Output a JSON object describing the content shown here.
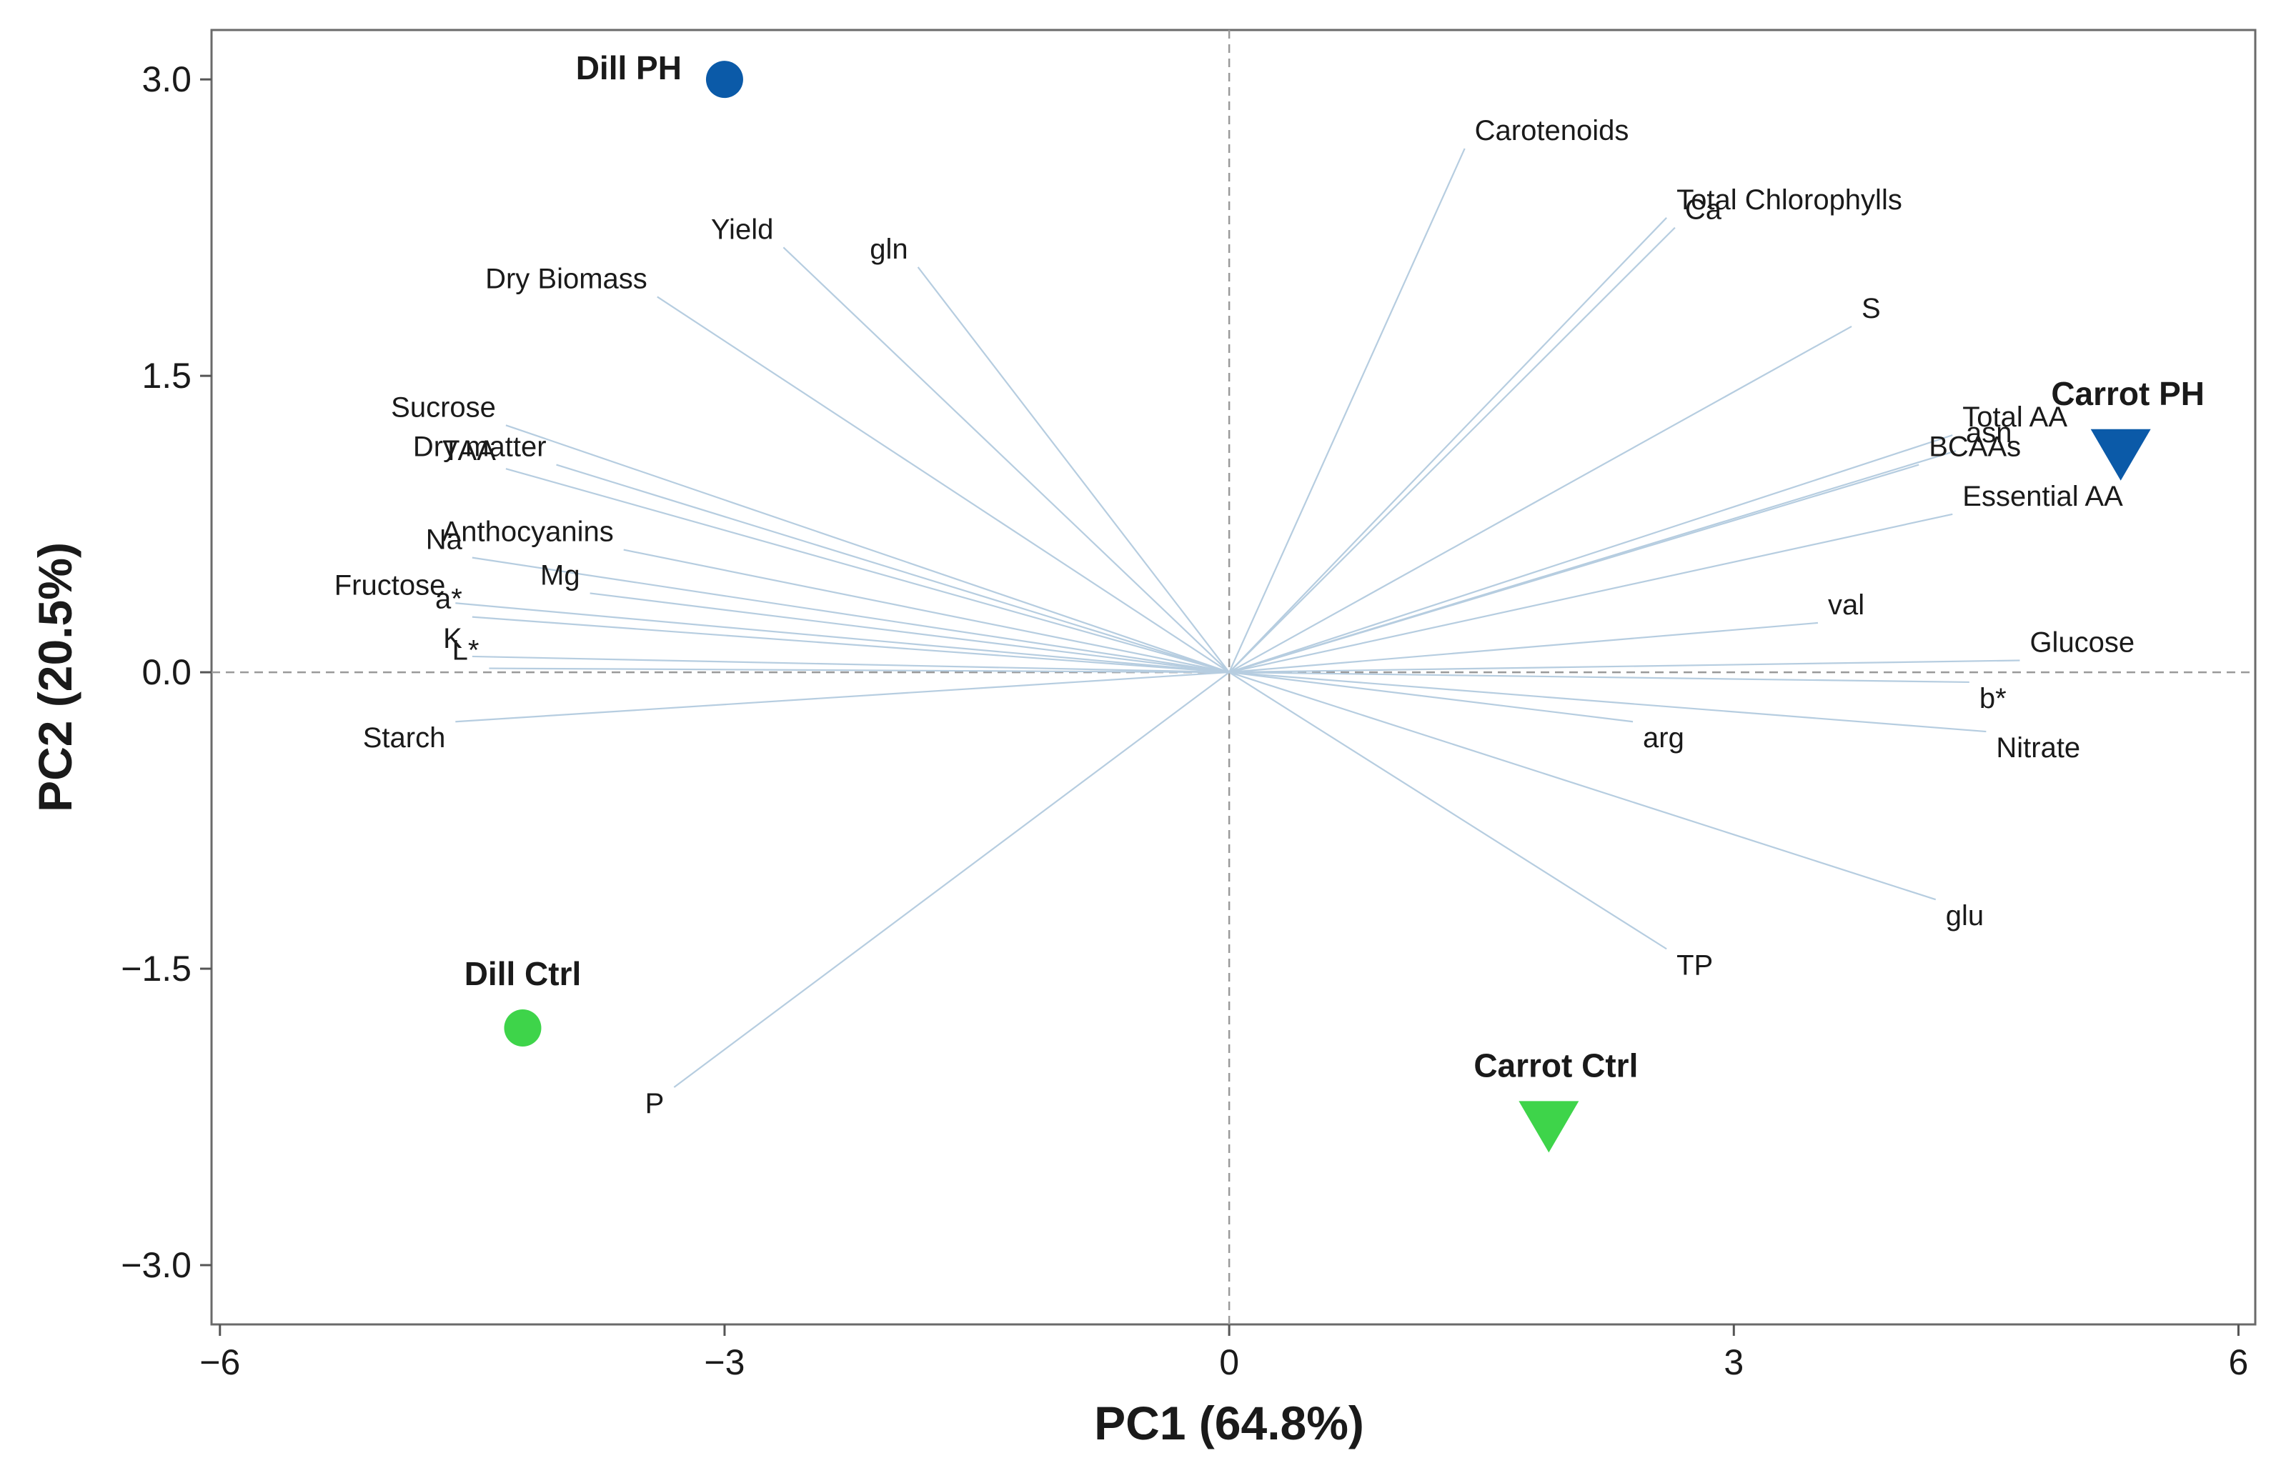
{
  "chart_data": {
    "type": "scatter",
    "subtype": "pca-biplot",
    "xlabel": "PC1 (64.8%)",
    "ylabel": "PC2 (20.5%)",
    "xlim": [
      -6.05,
      6.1
    ],
    "ylim": [
      -3.3,
      3.25
    ],
    "x_ticks": [
      {
        "value": -6,
        "label": "−6"
      },
      {
        "value": -3,
        "label": "−3"
      },
      {
        "value": 0,
        "label": "0"
      },
      {
        "value": 3,
        "label": "3"
      },
      {
        "value": 6,
        "label": "6"
      }
    ],
    "y_ticks": [
      {
        "value": 3.0,
        "label": "3.0"
      },
      {
        "value": 1.5,
        "label": "1.5"
      },
      {
        "value": 0.0,
        "label": "0.0"
      },
      {
        "value": -1.5,
        "label": "−1.5"
      },
      {
        "value": -3.0,
        "label": "−3.0"
      }
    ],
    "observations": [
      {
        "name": "Dill PH",
        "x": -3.0,
        "y": 3.0,
        "marker": "circle",
        "color": "#0b5aa8"
      },
      {
        "name": "Dill Ctrl",
        "x": -4.2,
        "y": -1.8,
        "marker": "circle",
        "color": "#3ed44a"
      },
      {
        "name": "Carrot PH",
        "x": 5.3,
        "y": 1.1,
        "marker": "triangle-down",
        "color": "#0b5aa8"
      },
      {
        "name": "Carrot Ctrl",
        "x": 1.9,
        "y": -2.3,
        "marker": "triangle-down",
        "color": "#3ed44a"
      }
    ],
    "loadings": [
      {
        "name": "Carotenoids",
        "x": 1.4,
        "y": 2.65
      },
      {
        "name": "Total Chlorophylls",
        "x": 2.6,
        "y": 2.3
      },
      {
        "name": "Ca",
        "x": 2.65,
        "y": 2.25
      },
      {
        "name": "S",
        "x": 3.7,
        "y": 1.75
      },
      {
        "name": "Total AA",
        "x": 4.3,
        "y": 1.2
      },
      {
        "name": "asn",
        "x": 4.32,
        "y": 1.12
      },
      {
        "name": "BCAAs",
        "x": 4.1,
        "y": 1.05
      },
      {
        "name": "Essential AA",
        "x": 4.3,
        "y": 0.8
      },
      {
        "name": "val",
        "x": 3.5,
        "y": 0.25
      },
      {
        "name": "Glucose",
        "x": 4.7,
        "y": 0.06
      },
      {
        "name": "b*",
        "x": 4.4,
        "y": -0.05
      },
      {
        "name": "Nitrate",
        "x": 4.5,
        "y": -0.3
      },
      {
        "name": "arg",
        "x": 2.4,
        "y": -0.25
      },
      {
        "name": "glu",
        "x": 4.2,
        "y": -1.15
      },
      {
        "name": "TP",
        "x": 2.6,
        "y": -1.4
      },
      {
        "name": "P",
        "x": -3.3,
        "y": -2.1
      },
      {
        "name": "Starch",
        "x": -4.6,
        "y": -0.25
      },
      {
        "name": "L*",
        "x": -4.4,
        "y": 0.02
      },
      {
        "name": "K",
        "x": -4.5,
        "y": 0.08
      },
      {
        "name": "a*",
        "x": -4.5,
        "y": 0.28
      },
      {
        "name": "Fructose",
        "x": -4.6,
        "y": 0.35
      },
      {
        "name": "Mg",
        "x": -3.8,
        "y": 0.4
      },
      {
        "name": "Na",
        "x": -4.5,
        "y": 0.58
      },
      {
        "name": "Anthocyanins",
        "x": -3.6,
        "y": 0.62
      },
      {
        "name": "TAA",
        "x": -4.3,
        "y": 1.03
      },
      {
        "name": "Dry matter",
        "x": -4.0,
        "y": 1.05
      },
      {
        "name": "Sucrose",
        "x": -4.3,
        "y": 1.25
      },
      {
        "name": "Dry Biomass",
        "x": -3.4,
        "y": 1.9
      },
      {
        "name": "Yield",
        "x": -2.65,
        "y": 2.15
      },
      {
        "name": "gln",
        "x": -1.85,
        "y": 2.05
      }
    ],
    "colors": {
      "loading_line": "#b6cde0",
      "axis_line": "#555555",
      "reference_line": "#9a9a9a"
    },
    "grid": false,
    "legend": "none"
  }
}
